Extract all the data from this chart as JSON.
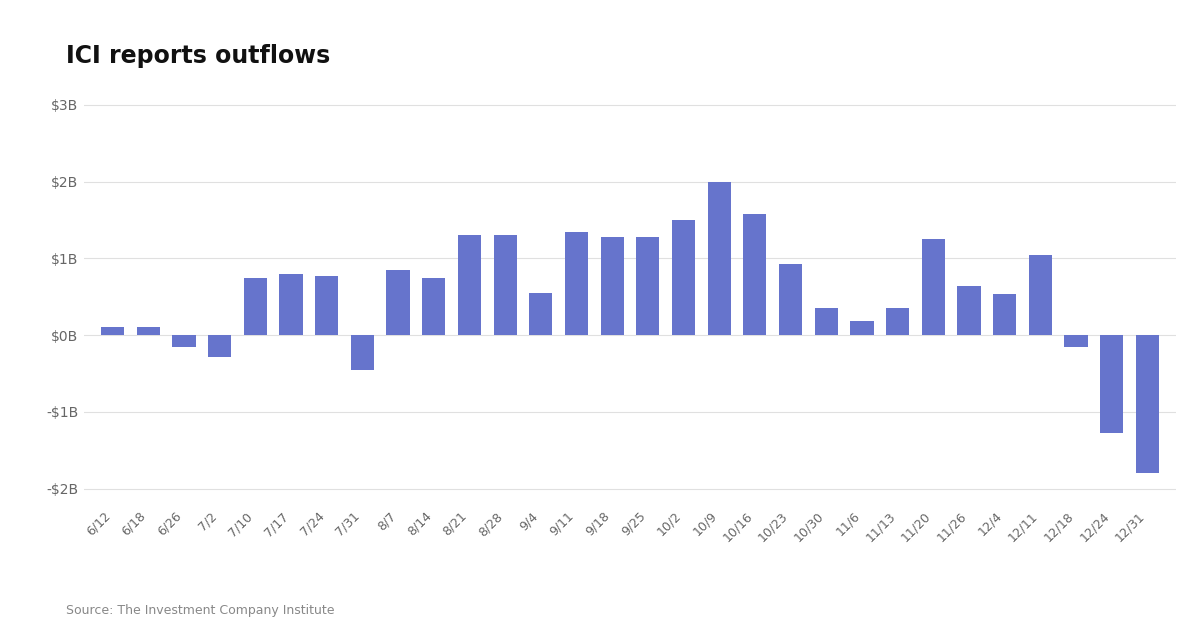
{
  "title": "ICI reports outflows",
  "source": "Source: The Investment Company Institute",
  "bar_color": "#6674CC",
  "background_color": "#ffffff",
  "grid_color": "#e0e0e0",
  "ylim": [
    -2200000000,
    3300000000
  ],
  "yticks": [
    -2000000000,
    -1000000000,
    0,
    1000000000,
    2000000000,
    3000000000
  ],
  "ytick_labels": [
    "-$2B",
    "-$1B",
    "$0B",
    "$1B",
    "$2B",
    "$3B"
  ],
  "categories": [
    "6/12",
    "6/18",
    "6/26",
    "7/2",
    "7/10",
    "7/17",
    "7/24",
    "7/31",
    "8/7",
    "8/14",
    "8/21",
    "8/28",
    "9/4",
    "9/11",
    "9/18",
    "9/25",
    "10/2",
    "10/9",
    "10/16",
    "10/23",
    "10/30",
    "11/6",
    "11/13",
    "11/20",
    "11/26",
    "12/4",
    "12/11",
    "12/18",
    "12/24",
    "12/31"
  ],
  "values": [
    100000000,
    100000000,
    -150000000,
    -280000000,
    750000000,
    800000000,
    770000000,
    -450000000,
    850000000,
    750000000,
    1300000000,
    1300000000,
    550000000,
    1350000000,
    1280000000,
    1280000000,
    1500000000,
    2000000000,
    1580000000,
    930000000,
    350000000,
    180000000,
    350000000,
    1250000000,
    640000000,
    540000000,
    1050000000,
    -150000000,
    -1270000000,
    -1800000000
  ]
}
